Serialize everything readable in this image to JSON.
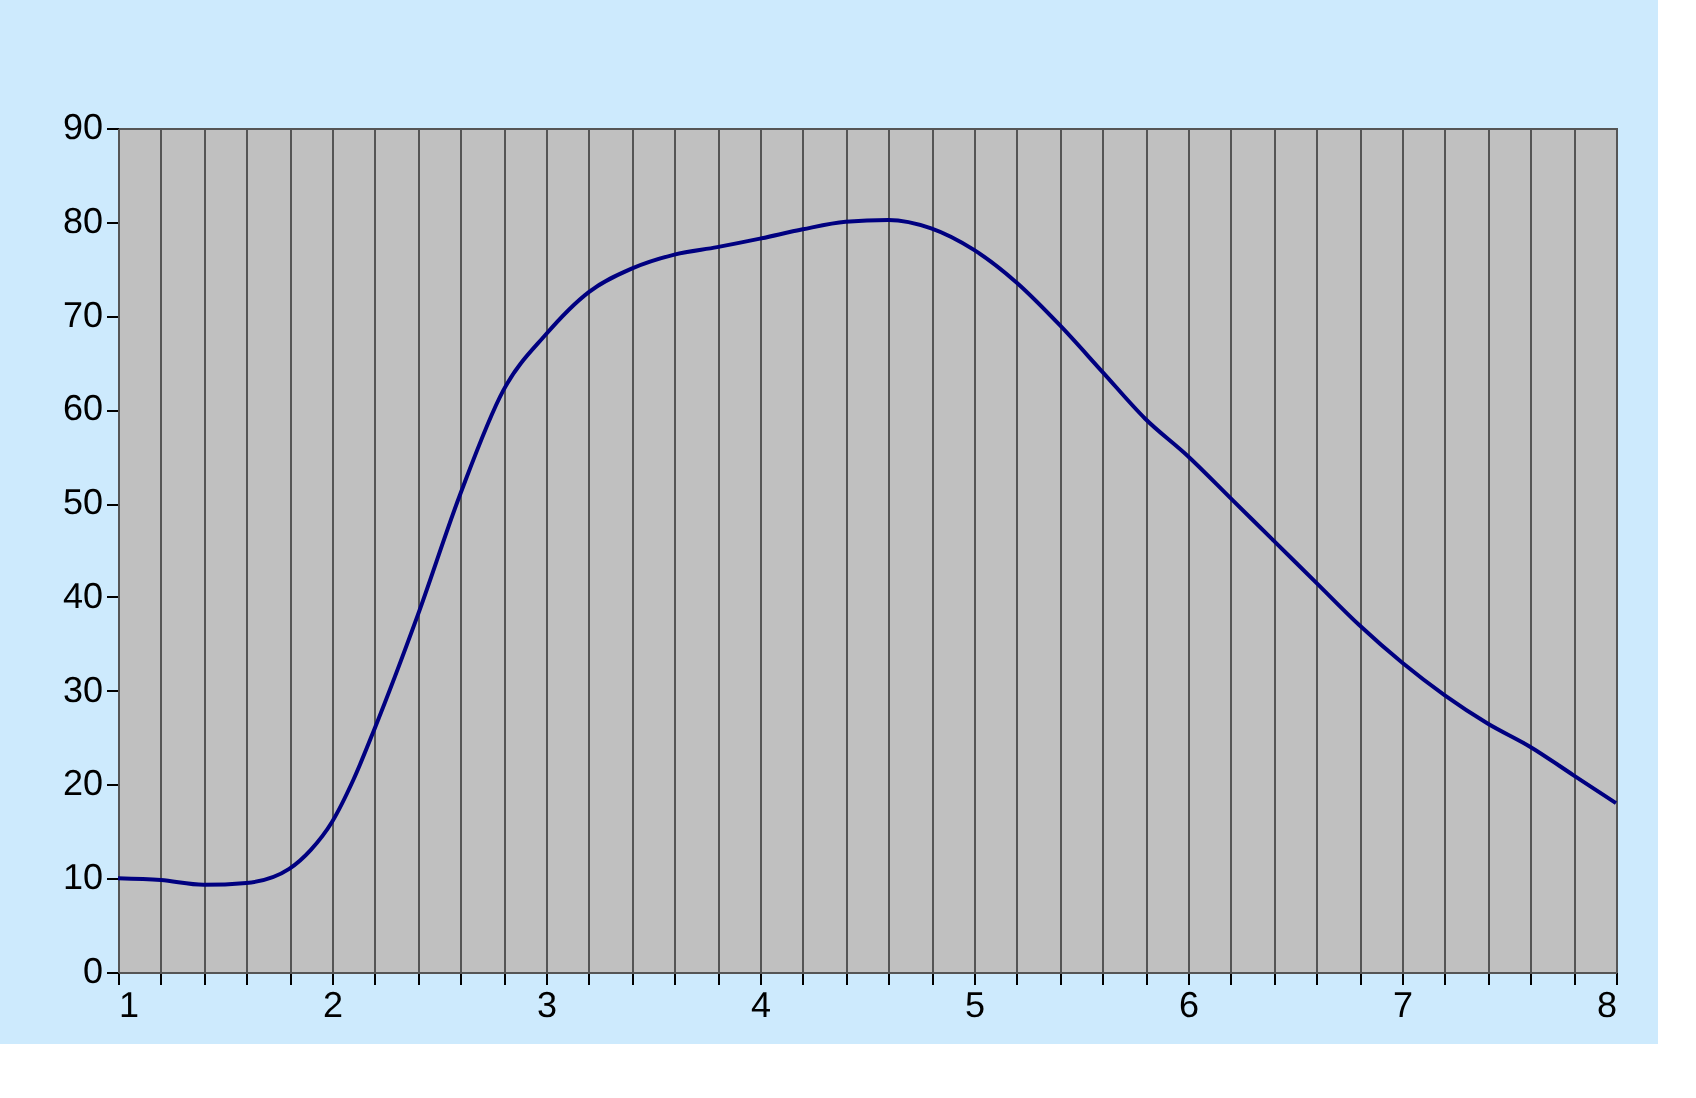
{
  "chart_data": {
    "type": "line",
    "x": [
      1,
      1.2,
      1.4,
      1.6,
      1.8,
      1.9,
      2,
      2.1,
      2.2,
      2.4,
      2.6,
      2.8,
      3,
      3.2,
      3.4,
      3.6,
      3.8,
      4,
      4.2,
      4.4,
      4.6,
      4.8,
      5,
      5.2,
      5.4,
      5.6,
      5.8,
      6,
      6.2,
      6.4,
      6.6,
      6.8,
      7,
      7.2,
      7.4,
      7.6,
      7.8,
      8
    ],
    "series": [
      {
        "color": "#000080",
        "values": [
          10,
          9.8,
          9.3,
          9.5,
          11,
          13,
          16,
          20.5,
          26,
          38,
          51,
          62,
          68,
          72.5,
          75,
          76.5,
          77.3,
          78.2,
          79.2,
          80,
          80.2,
          79.3,
          77,
          73.5,
          69,
          64,
          59,
          55,
          50.5,
          46,
          41.5,
          37,
          33,
          29.5,
          26.5,
          24,
          21,
          18
        ]
      }
    ],
    "xlim": [
      1,
      8
    ],
    "xticks": [
      1,
      {
        "value": 1.2,
        "label": null
      },
      {
        "value": 1.4,
        "label": null
      },
      {
        "value": 1.6,
        "label": null
      },
      {
        "value": 1.8,
        "label": null
      },
      2,
      {
        "value": 2.2,
        "label": null
      },
      {
        "value": 2.4,
        "label": null
      },
      {
        "value": 2.6,
        "label": null
      },
      {
        "value": 2.8,
        "label": null
      },
      3,
      {
        "value": 3.2,
        "label": null
      },
      {
        "value": 3.4,
        "label": null
      },
      {
        "value": 3.6,
        "label": null
      },
      {
        "value": 3.8,
        "label": null
      },
      4,
      {
        "value": 4.2,
        "label": null
      },
      {
        "value": 4.4,
        "label": null
      },
      {
        "value": 4.6,
        "label": null
      },
      {
        "value": 4.8,
        "label": null
      },
      5,
      {
        "value": 5.2,
        "label": null
      },
      {
        "value": 5.4,
        "label": null
      },
      {
        "value": 5.6,
        "label": null
      },
      {
        "value": 5.8,
        "label": null
      },
      6,
      {
        "value": 6.2,
        "label": null
      },
      {
        "value": 6.4,
        "label": null
      },
      {
        "value": 6.6,
        "label": null
      },
      {
        "value": 6.8,
        "label": null
      },
      7,
      {
        "value": 7.2,
        "label": null
      },
      {
        "value": 7.4,
        "label": null
      },
      {
        "value": 7.6,
        "label": null
      },
      {
        "value": 7.8,
        "label": null
      },
      8
    ],
    "ylim": [
      0,
      90
    ],
    "yticks": [
      0,
      10,
      20,
      30,
      40,
      50,
      60,
      70,
      80,
      90
    ],
    "grid": "x",
    "legend": false,
    "marker": "none",
    "line_style": "solid"
  }
}
